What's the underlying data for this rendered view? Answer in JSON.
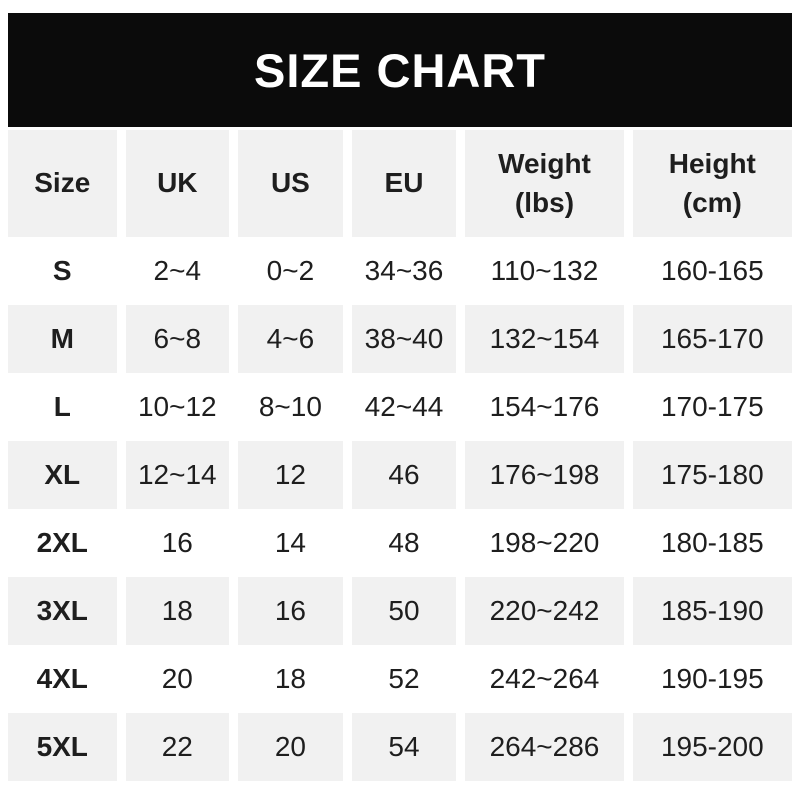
{
  "colors": {
    "banner_bg": "#0b0b0b",
    "banner_text": "#ffffff",
    "stripe": "#f1f1f1",
    "row_white": "#ffffff",
    "text": "#1e1e1e"
  },
  "banner": {
    "title": "SIZE CHART"
  },
  "table": {
    "columns": [
      {
        "label_lines": [
          "Size"
        ]
      },
      {
        "label_lines": [
          "UK"
        ]
      },
      {
        "label_lines": [
          "US"
        ]
      },
      {
        "label_lines": [
          "EU"
        ]
      },
      {
        "label_lines": [
          "Weight",
          "(lbs)"
        ]
      },
      {
        "label_lines": [
          "Height",
          "(cm)"
        ]
      }
    ]
  },
  "chart_data": {
    "type": "table",
    "title": "SIZE CHART",
    "columns": [
      "Size",
      "UK",
      "US",
      "EU",
      "Weight (lbs)",
      "Height (cm)"
    ],
    "rows": [
      [
        "S",
        "2~4",
        "0~2",
        "34~36",
        "110~132",
        "160-165"
      ],
      [
        "M",
        "6~8",
        "4~6",
        "38~40",
        "132~154",
        "165-170"
      ],
      [
        "L",
        "10~12",
        "8~10",
        "42~44",
        "154~176",
        "170-175"
      ],
      [
        "XL",
        "12~14",
        "12",
        "46",
        "176~198",
        "175-180"
      ],
      [
        "2XL",
        "16",
        "14",
        "48",
        "198~220",
        "180-185"
      ],
      [
        "3XL",
        "18",
        "16",
        "50",
        "220~242",
        "185-190"
      ],
      [
        "4XL",
        "20",
        "18",
        "52",
        "242~264",
        "190-195"
      ],
      [
        "5XL",
        "22",
        "20",
        "54",
        "264~286",
        "195-200"
      ]
    ]
  }
}
